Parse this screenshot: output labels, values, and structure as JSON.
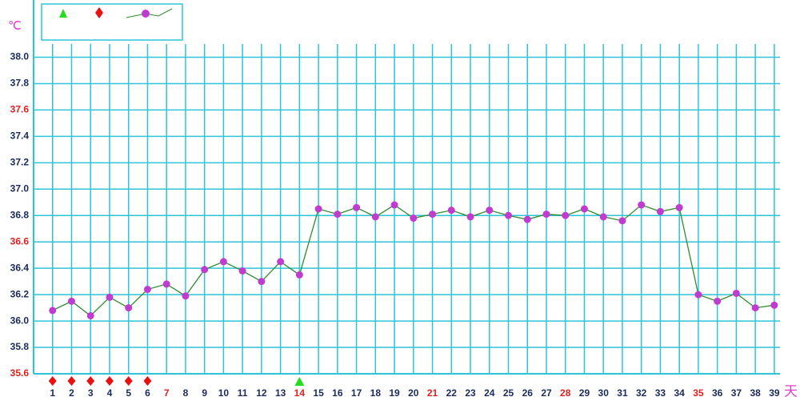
{
  "chart_data": {
    "type": "line",
    "y_label": "℃",
    "x_label": "天",
    "x": [
      1,
      2,
      3,
      4,
      5,
      6,
      7,
      8,
      9,
      10,
      11,
      12,
      13,
      14,
      15,
      16,
      17,
      18,
      19,
      20,
      21,
      22,
      23,
      24,
      25,
      26,
      27,
      28,
      29,
      30,
      31,
      32,
      33,
      34,
      35,
      36,
      37,
      38,
      39
    ],
    "series": [
      {
        "color": "#2e8b2e",
        "marker_color": "#c03cd0",
        "values": [
          36.08,
          36.15,
          36.04,
          36.18,
          36.1,
          36.24,
          36.28,
          36.19,
          36.39,
          36.45,
          36.38,
          36.3,
          36.45,
          36.35,
          36.85,
          36.81,
          36.86,
          36.79,
          36.88,
          36.78,
          36.81,
          36.84,
          36.79,
          36.84,
          36.8,
          36.77,
          36.81,
          36.8,
          36.85,
          36.79,
          36.76,
          36.88,
          36.83,
          36.86,
          36.2,
          36.15,
          36.21,
          36.1,
          36.12
        ]
      }
    ],
    "xlim": [
      0,
      39.3
    ],
    "xticks": [
      1,
      2,
      3,
      4,
      5,
      6,
      7,
      8,
      9,
      10,
      11,
      12,
      13,
      14,
      15,
      16,
      17,
      18,
      19,
      20,
      21,
      22,
      23,
      24,
      25,
      26,
      27,
      28,
      29,
      30,
      31,
      32,
      33,
      34,
      35,
      36,
      37,
      38,
      39
    ],
    "ylim": [
      35.6,
      38.1
    ],
    "yticks": [
      {
        "value": 35.6,
        "label": "35.6"
      },
      {
        "value": 35.8,
        "label": "35.8"
      },
      {
        "value": 36.0,
        "label": "36.0"
      },
      {
        "value": 36.2,
        "label": "36.2"
      },
      {
        "value": 36.4,
        "label": "36.4"
      },
      {
        "value": 36.6,
        "label": "36.6"
      },
      {
        "value": 36.8,
        "label": "36.8"
      },
      {
        "value": 37.0,
        "label": "37.0"
      },
      {
        "value": 37.2,
        "label": "37.2"
      },
      {
        "value": 37.4,
        "label": "37.4"
      },
      {
        "value": 37.6,
        "label": "37.6"
      },
      {
        "value": 37.8,
        "label": "37.8"
      },
      {
        "value": 38.0,
        "label": "38.0"
      }
    ],
    "highlight_xticks": [
      7,
      14,
      21,
      28,
      35
    ],
    "highlight_yticks": [
      35.6,
      36.6,
      37.6
    ],
    "highlight_color": "#e02020",
    "tick_color": "#1a2a5a",
    "grid": true,
    "grid_color": "#2ec4d8",
    "menstruation_days": [
      1,
      2,
      3,
      4,
      5,
      6
    ],
    "menstruation_color": "#e81010",
    "ovulation_days": [
      14
    ],
    "ovulation_color": "#22dd22"
  }
}
